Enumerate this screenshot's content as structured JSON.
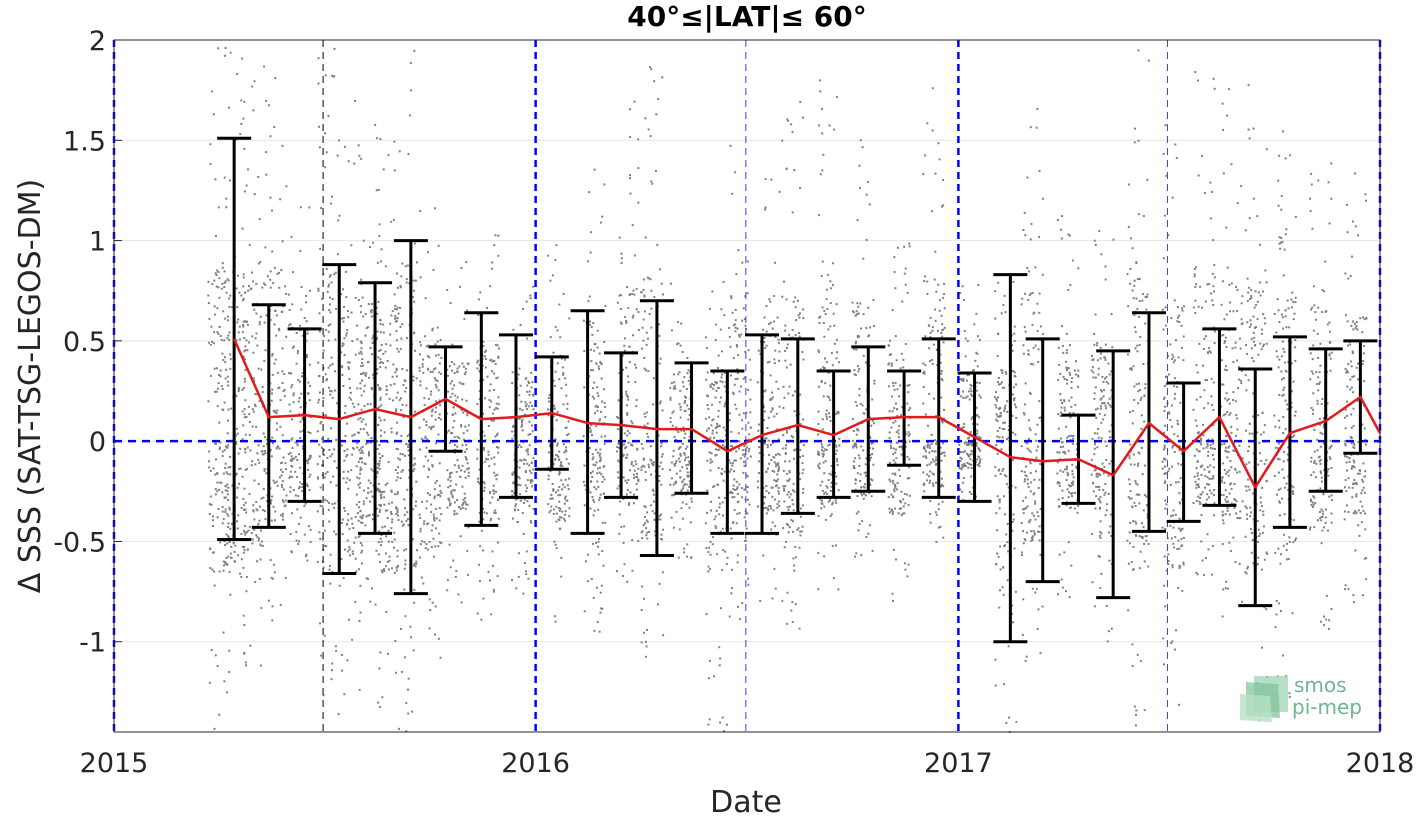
{
  "chart_data": {
    "type": "line",
    "title": "40°≤|LAT|≤ 60°",
    "xlabel": "Date",
    "ylabel": "Δ SSS (SAT-TSG-LEGOS-DM)",
    "xlim": [
      "2015-01-01",
      "2018-01-01"
    ],
    "ylim": [
      -1.45,
      2.0
    ],
    "x_tick_labels": [
      "2015",
      "2016",
      "2017",
      "2018"
    ],
    "y_ticks": [
      -1,
      -0.5,
      0,
      0.5,
      1,
      1.5,
      2
    ],
    "y_tick_labels": [
      "-1",
      "-0.5",
      "0",
      "0.5",
      "1",
      "1.5",
      "2"
    ],
    "grid": true,
    "zero_line": 0,
    "year_boundaries": [
      "2015-01-01",
      "2016-01-01",
      "2017-01-01",
      "2018-01-01"
    ],
    "half_year_boundaries": [
      "2015-07-01",
      "2016-07-01",
      "2017-07-01"
    ],
    "series": [
      {
        "type": "errorbar_mean",
        "color": "#e31a1c",
        "points": [
          {
            "date": "2015-04-15",
            "mean": 0.51,
            "low": -0.49,
            "high": 1.51
          },
          {
            "date": "2015-05-15",
            "mean": 0.12,
            "low": -0.43,
            "high": 0.68
          },
          {
            "date": "2015-06-15",
            "mean": 0.13,
            "low": -0.3,
            "high": 0.56
          },
          {
            "date": "2015-07-15",
            "mean": 0.11,
            "low": -0.66,
            "high": 0.88
          },
          {
            "date": "2015-08-15",
            "mean": 0.16,
            "low": -0.46,
            "high": 0.79
          },
          {
            "date": "2015-09-15",
            "mean": 0.12,
            "low": -0.76,
            "high": 1.0
          },
          {
            "date": "2015-10-15",
            "mean": 0.21,
            "low": -0.05,
            "high": 0.47
          },
          {
            "date": "2015-11-15",
            "mean": 0.11,
            "low": -0.42,
            "high": 0.64
          },
          {
            "date": "2015-12-15",
            "mean": 0.12,
            "low": -0.28,
            "high": 0.53
          },
          {
            "date": "2016-01-15",
            "mean": 0.14,
            "low": -0.14,
            "high": 0.42
          },
          {
            "date": "2016-02-15",
            "mean": 0.09,
            "low": -0.46,
            "high": 0.65
          },
          {
            "date": "2016-03-15",
            "mean": 0.08,
            "low": -0.28,
            "high": 0.44
          },
          {
            "date": "2016-04-15",
            "mean": 0.06,
            "low": -0.57,
            "high": 0.7
          },
          {
            "date": "2016-05-15",
            "mean": 0.06,
            "low": -0.26,
            "high": 0.39
          },
          {
            "date": "2016-06-15",
            "mean": -0.05,
            "low": -0.46,
            "high": 0.35
          },
          {
            "date": "2016-07-15",
            "mean": 0.03,
            "low": -0.46,
            "high": 0.53
          },
          {
            "date": "2016-08-15",
            "mean": 0.08,
            "low": -0.36,
            "high": 0.51
          },
          {
            "date": "2016-09-15",
            "mean": 0.03,
            "low": -0.28,
            "high": 0.35
          },
          {
            "date": "2016-10-15",
            "mean": 0.11,
            "low": -0.25,
            "high": 0.47
          },
          {
            "date": "2016-11-15",
            "mean": 0.12,
            "low": -0.12,
            "high": 0.35
          },
          {
            "date": "2016-12-15",
            "mean": 0.12,
            "low": -0.28,
            "high": 0.51
          },
          {
            "date": "2017-01-15",
            "mean": 0.02,
            "low": -0.3,
            "high": 0.34
          },
          {
            "date": "2017-02-15",
            "mean": -0.08,
            "low": -1.0,
            "high": 0.83
          },
          {
            "date": "2017-03-15",
            "mean": -0.1,
            "low": -0.7,
            "high": 0.51
          },
          {
            "date": "2017-04-15",
            "mean": -0.09,
            "low": -0.31,
            "high": 0.13
          },
          {
            "date": "2017-05-15",
            "mean": -0.17,
            "low": -0.78,
            "high": 0.45
          },
          {
            "date": "2017-06-15",
            "mean": 0.09,
            "low": -0.45,
            "high": 0.64
          },
          {
            "date": "2017-07-15",
            "mean": -0.05,
            "low": -0.4,
            "high": 0.29
          },
          {
            "date": "2017-08-15",
            "mean": 0.12,
            "low": -0.32,
            "high": 0.56
          },
          {
            "date": "2017-09-15",
            "mean": -0.23,
            "low": -0.82,
            "high": 0.36
          },
          {
            "date": "2017-10-15",
            "mean": 0.04,
            "low": -0.43,
            "high": 0.52
          },
          {
            "date": "2017-11-15",
            "mean": 0.1,
            "low": -0.25,
            "high": 0.46
          },
          {
            "date": "2017-12-15",
            "mean": 0.22,
            "low": -0.06,
            "high": 0.5
          },
          {
            "date": "2018-01-01",
            "mean": 0.04,
            "low": null,
            "high": null
          }
        ]
      },
      {
        "type": "scatter_cloud",
        "color": "#808080",
        "note_visible": false,
        "columns": [
          {
            "date": "2015-04-01",
            "min": -1.45,
            "max": 2.0
          },
          {
            "date": "2015-04-15",
            "min": -1.35,
            "max": 1.95
          },
          {
            "date": "2015-05-01",
            "min": -1.2,
            "max": 2.0
          },
          {
            "date": "2015-05-20",
            "min": -0.9,
            "max": 1.95
          },
          {
            "date": "2015-06-10",
            "min": -0.6,
            "max": 1.3
          },
          {
            "date": "2015-07-05",
            "min": -1.45,
            "max": 2.0
          },
          {
            "date": "2015-07-25",
            "min": -1.3,
            "max": 1.9
          },
          {
            "date": "2015-08-10",
            "min": -0.9,
            "max": 1.6
          },
          {
            "date": "2015-08-25",
            "min": -1.45,
            "max": 1.5
          },
          {
            "date": "2015-09-10",
            "min": -1.45,
            "max": 2.0
          },
          {
            "date": "2015-10-01",
            "min": -1.2,
            "max": 1.2
          },
          {
            "date": "2015-10-25",
            "min": -0.8,
            "max": 0.9
          },
          {
            "date": "2015-11-20",
            "min": -0.9,
            "max": 1.1
          },
          {
            "date": "2015-12-20",
            "min": -0.8,
            "max": 0.8
          },
          {
            "date": "2016-01-20",
            "min": -0.9,
            "max": 1.0
          },
          {
            "date": "2016-02-20",
            "min": -0.95,
            "max": 1.4
          },
          {
            "date": "2016-03-20",
            "min": -0.7,
            "max": 1.7
          },
          {
            "date": "2016-04-10",
            "min": -1.1,
            "max": 1.9
          },
          {
            "date": "2016-05-05",
            "min": -0.6,
            "max": 0.8
          },
          {
            "date": "2016-06-05",
            "min": -1.45,
            "max": 0.8
          },
          {
            "date": "2016-06-25",
            "min": -0.9,
            "max": 1.5
          },
          {
            "date": "2016-07-20",
            "min": -0.8,
            "max": 1.4
          },
          {
            "date": "2016-08-10",
            "min": -1.0,
            "max": 1.7
          },
          {
            "date": "2016-09-10",
            "min": -0.75,
            "max": 1.9
          },
          {
            "date": "2016-10-10",
            "min": -0.6,
            "max": 1.6
          },
          {
            "date": "2016-11-10",
            "min": -0.8,
            "max": 1.0
          },
          {
            "date": "2016-12-10",
            "min": -0.5,
            "max": 1.9
          },
          {
            "date": "2017-01-10",
            "min": -0.3,
            "max": 0.8
          },
          {
            "date": "2017-02-10",
            "min": -1.45,
            "max": 0.8
          },
          {
            "date": "2017-03-05",
            "min": -1.1,
            "max": 1.7
          },
          {
            "date": "2017-04-05",
            "min": -0.8,
            "max": 1.2
          },
          {
            "date": "2017-05-05",
            "min": -1.1,
            "max": 1.1
          },
          {
            "date": "2017-06-05",
            "min": -1.45,
            "max": 2.0
          },
          {
            "date": "2017-07-05",
            "min": -1.45,
            "max": 1.6
          },
          {
            "date": "2017-08-01",
            "min": -0.7,
            "max": 2.0
          },
          {
            "date": "2017-08-25",
            "min": -0.9,
            "max": 1.8
          },
          {
            "date": "2017-09-15",
            "min": -1.45,
            "max": 1.9
          },
          {
            "date": "2017-10-10",
            "min": -1.3,
            "max": 1.6
          },
          {
            "date": "2017-11-10",
            "min": -0.95,
            "max": 1.5
          },
          {
            "date": "2017-12-10",
            "min": -0.8,
            "max": 1.4
          }
        ]
      }
    ]
  },
  "watermark": {
    "line1": "smos",
    "line2": "pi-mep",
    "color": "#5fae83"
  }
}
